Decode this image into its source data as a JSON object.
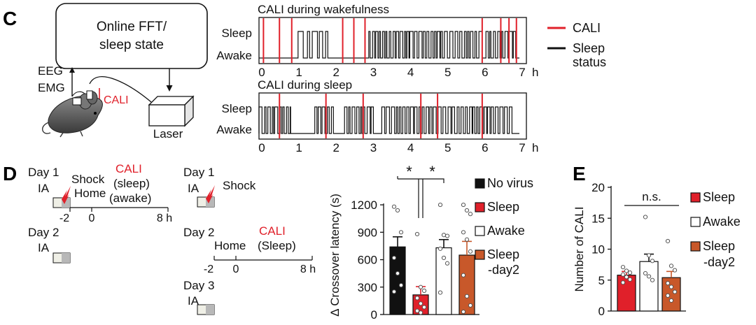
{
  "colors": {
    "cali_red": "#e0202a",
    "black_bar": "#111111",
    "orange_bar": "#c8582a",
    "box_gray": "#b8b8b8",
    "box_fill": "#efefe6"
  },
  "panel_c": {
    "letter": "C",
    "fft_box": {
      "line1": "Online FFT/",
      "line2": "sleep state"
    },
    "eeg": "EEG",
    "emg": "EMG",
    "cali_arrow": "CALI",
    "laser": "Laser",
    "trace_wake": {
      "title": "CALI during wakefulness",
      "y_sleep": "Sleep",
      "y_awake": "Awake",
      "ticks": [
        "0",
        "1",
        "2",
        "3",
        "4",
        "5",
        "6",
        "7"
      ],
      "unit": "h",
      "cali_times": [
        0.12,
        0.55,
        0.88,
        2.25,
        2.55,
        2.85,
        6.0,
        6.5,
        6.72,
        6.92
      ]
    },
    "trace_sleep": {
      "title": "CALI during sleep",
      "y_sleep": "Sleep",
      "y_awake": "Awake",
      "ticks": [
        "0",
        "1",
        "2",
        "3",
        "4",
        "5",
        "6",
        "7"
      ],
      "unit": "h",
      "cali_times": [
        0.55,
        1.8,
        2.8,
        4.35,
        4.8,
        6.0
      ]
    },
    "legend": {
      "cali": "CALI",
      "status_line1": "Sleep",
      "status_line2": "status"
    }
  },
  "panel_d": {
    "letter": "D",
    "protocol_left": {
      "day1": "Day 1",
      "ia": "IA",
      "shock": "Shock",
      "home": "Home",
      "cali_red": "CALI",
      "cali_sleep": "(sleep)",
      "cali_awake": "(awake)",
      "ticks": [
        "-2",
        "0",
        "8 h"
      ],
      "day2": "Day 2",
      "ia2": "IA"
    },
    "protocol_right": {
      "day1": "Day 1",
      "ia": "IA",
      "shock": "Shock",
      "day2": "Day 2",
      "home": "Home",
      "cali_red": "CALI",
      "cali_sleep": "(Sleep)",
      "ticks": [
        "-2",
        "0",
        "8 h"
      ],
      "day3": "Day 3",
      "ia3": "IA"
    }
  },
  "chart_data": [
    {
      "type": "bar",
      "ylabel": "Δ Crossover latency (s)",
      "ylim": [
        0,
        1300
      ],
      "yticks": [
        "0",
        "300",
        "600",
        "900",
        "1200"
      ],
      "categories": [
        "No virus",
        "Sleep",
        "Awake",
        "Sleep -day2"
      ],
      "values": [
        740,
        215,
        730,
        650
      ],
      "errors": [
        110,
        90,
        90,
        150
      ],
      "colors": [
        "#111111",
        "#e0202a",
        "#ffffff",
        "#c8582a"
      ],
      "points": [
        [
          1180,
          1140,
          900,
          620,
          450,
          320,
          250
        ],
        [
          880,
          300,
          260,
          180,
          120,
          80,
          40,
          20
        ],
        [
          1200,
          870,
          860,
          720,
          620,
          560,
          240
        ],
        [
          1200,
          1140,
          1100,
          900,
          820,
          690,
          430,
          200,
          100,
          30
        ]
      ],
      "significance": [
        {
          "label": "*"
        },
        {
          "label": "*"
        }
      ],
      "legend": [
        "No virus",
        "Sleep",
        "Awake",
        "Sleep",
        "-day2"
      ]
    },
    {
      "type": "bar",
      "letter": "E",
      "ylabel": "Number of  CALI",
      "ylim": [
        0,
        20
      ],
      "yticks": [
        "0",
        "5",
        "10",
        "15",
        "20"
      ],
      "categories": [
        "Sleep",
        "Awake",
        "Sleep -day2"
      ],
      "values": [
        5.8,
        8.0,
        5.4
      ],
      "errors": [
        0.6,
        1.2,
        1.0
      ],
      "colors": [
        "#e0202a",
        "#ffffff",
        "#c8582a"
      ],
      "points": [
        [
          7.1,
          6.5,
          6.2,
          5.9,
          5.5,
          5.1,
          4.6
        ],
        [
          15.2,
          9.0,
          8.1,
          6.1,
          5.6,
          5.0
        ],
        [
          11.3,
          7.3,
          6.6,
          4.5,
          3.9,
          3.1,
          2.5,
          1.7
        ]
      ],
      "significance": [
        {
          "label": "n.s."
        }
      ],
      "legend": [
        "Sleep",
        "Awake",
        "Sleep",
        "-day2"
      ]
    }
  ]
}
